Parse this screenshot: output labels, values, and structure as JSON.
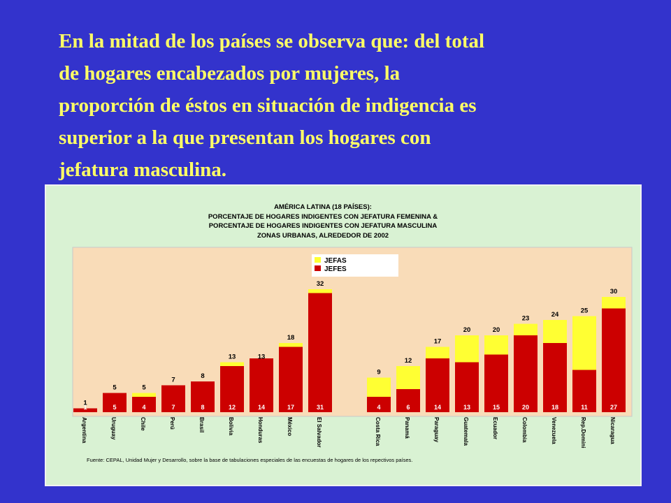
{
  "headline": {
    "lines": [
      "En la mitad de los países se observa que: del total",
      "de hogares encabezados por mujeres, la",
      "proporción de éstos en situación de indigencia es",
      "superior a la que presentan los hogares con",
      "jefatura masculina."
    ]
  },
  "chart_data": {
    "type": "bar",
    "title": [
      "AMÉRICA LATINA (18 PAÍSES):",
      "PORCENTAJE DE HOGARES INDIGENTES CON JEFATURA FEMENINA &",
      "PORCENTAJE DE HOGARES INDIGENTES CON JEFATURA MASCULINA",
      "ZONAS URBANAS, ALREDEDOR DE 2002"
    ],
    "legend": {
      "placement": "top-center",
      "entries": [
        "JEFAS",
        "JEFES"
      ]
    },
    "ylim": [
      0,
      40
    ],
    "grid": false,
    "groups": [
      {
        "categories": [
          "Argentina",
          "Uruguay",
          "Chile",
          "Perú",
          "Brasil",
          "Bolivia",
          "Honduras",
          "México",
          "El Salvador"
        ],
        "jefas": [
          1,
          5,
          5,
          7,
          8,
          13,
          13,
          18,
          32
        ],
        "jefes": [
          1,
          5,
          4,
          7,
          8,
          12,
          14,
          17,
          31
        ]
      },
      {
        "categories": [
          "Costa Rica",
          "Panamá",
          "Paraguay",
          "Guatemala",
          "Ecuador",
          "Colombia",
          "Venezuela",
          "Rep.Dominicana",
          "Nicaragua"
        ],
        "jefas": [
          9,
          12,
          17,
          20,
          20,
          23,
          24,
          25,
          30
        ],
        "jefes": [
          4,
          6,
          14,
          13,
          15,
          20,
          18,
          11,
          27
        ]
      }
    ],
    "source": "Fuente: CEPAL, Unidad Mujer y Desarrollo, sobre la base de tabulaciones especiales de las encuestas de hogares de los repectivos países."
  },
  "colors": {
    "background": "#3333cc",
    "headline": "#ffff66",
    "panel": "#d9f2d3",
    "plot": "#f9dcb8",
    "jefas": "#ffff33",
    "jefes": "#cc0000"
  }
}
